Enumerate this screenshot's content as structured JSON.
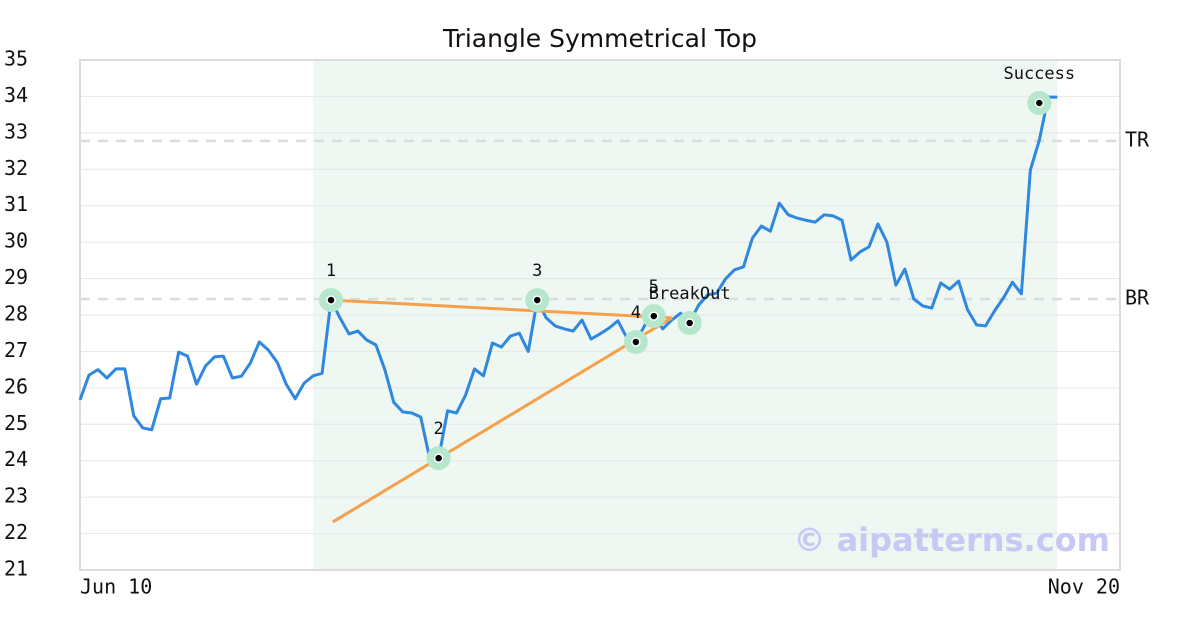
{
  "chart_data": {
    "type": "line",
    "title": "Triangle Symmetrical Top",
    "x": [
      0,
      1,
      2,
      3,
      4,
      5,
      6,
      7,
      8,
      9,
      10,
      11,
      12,
      13,
      14,
      15,
      16,
      17,
      18,
      19,
      20,
      21,
      22,
      23,
      24,
      25,
      26,
      27,
      28,
      29,
      30,
      31,
      32,
      33,
      34,
      35,
      36,
      37,
      38,
      39,
      40,
      41,
      42,
      43,
      44,
      45,
      46,
      47,
      48,
      49,
      50,
      51,
      52,
      53,
      54,
      55,
      56,
      57,
      58,
      59,
      60,
      61,
      62,
      63,
      64,
      65,
      66,
      67,
      68,
      69,
      70,
      71,
      72,
      73,
      74,
      75,
      76,
      77,
      78,
      79,
      80,
      81,
      82,
      83,
      84,
      85,
      86,
      87,
      88,
      89,
      90,
      91,
      92,
      93,
      94,
      95,
      96,
      97,
      98,
      99,
      100,
      101,
      102,
      103,
      104,
      105,
      106,
      107,
      108,
      109
    ],
    "values": [
      25.67,
      26.35,
      26.5,
      26.27,
      26.52,
      26.52,
      25.23,
      24.9,
      24.85,
      25.7,
      25.72,
      26.98,
      26.87,
      26.1,
      26.6,
      26.85,
      26.87,
      26.27,
      26.32,
      26.68,
      27.26,
      27.04,
      26.7,
      26.1,
      25.7,
      26.13,
      26.33,
      26.4,
      28.41,
      27.92,
      27.48,
      27.56,
      27.31,
      27.18,
      26.5,
      25.6,
      25.34,
      25.31,
      25.2,
      24.07,
      24.07,
      25.37,
      25.31,
      25.8,
      26.52,
      26.33,
      27.23,
      27.12,
      27.42,
      27.5,
      27.0,
      28.41,
      27.92,
      27.7,
      27.62,
      27.56,
      27.86,
      27.34,
      27.48,
      27.64,
      27.84,
      27.37,
      27.26,
      27.72,
      27.97,
      27.62,
      27.86,
      28.05,
      27.81,
      28.27,
      28.55,
      28.6,
      28.99,
      29.24,
      29.32,
      30.11,
      30.44,
      30.3,
      31.07,
      30.75,
      30.66,
      30.6,
      30.55,
      30.75,
      30.72,
      30.6,
      29.51,
      29.73,
      29.87,
      30.5,
      30.0,
      28.82,
      29.26,
      28.44,
      28.25,
      28.19,
      28.88,
      28.71,
      28.93,
      28.14,
      27.73,
      27.7,
      28.11,
      28.47,
      28.9,
      28.58,
      31.98,
      32.8,
      33.98,
      33.98
    ],
    "color": "#2f87e0",
    "xlim": [
      0,
      116
    ],
    "xticks": [
      {
        "value": 0,
        "label": "Jun 10"
      },
      {
        "value": 116,
        "label": "Nov 20"
      }
    ],
    "ylim": [
      21,
      35
    ],
    "yticks": [
      21,
      22,
      23,
      24,
      25,
      26,
      27,
      28,
      29,
      30,
      31,
      32,
      33,
      34,
      35
    ],
    "grid": true,
    "pattern_range": [
      26,
      109
    ],
    "levels": [
      {
        "label": "TR",
        "value": 32.78
      },
      {
        "label": "BR",
        "value": 28.44
      }
    ],
    "trendlines": [
      {
        "x": [
          28,
          66
        ],
        "y": [
          28.41,
          27.92
        ]
      },
      {
        "x": [
          28.2,
          66
        ],
        "y": [
          22.32,
          27.92
        ]
      }
    ],
    "points": [
      {
        "label": "1",
        "x": 28,
        "y": 28.41
      },
      {
        "label": "2",
        "x": 40,
        "y": 24.07
      },
      {
        "label": "3",
        "x": 51,
        "y": 28.41
      },
      {
        "label": "4",
        "x": 62,
        "y": 27.26
      },
      {
        "label": "5",
        "x": 64,
        "y": 27.97
      },
      {
        "label": "BreakOut",
        "x": 68,
        "y": 27.78
      },
      {
        "label": "Success",
        "x": 107,
        "y": 33.82
      }
    ],
    "watermark": "© aipatterns.com"
  }
}
